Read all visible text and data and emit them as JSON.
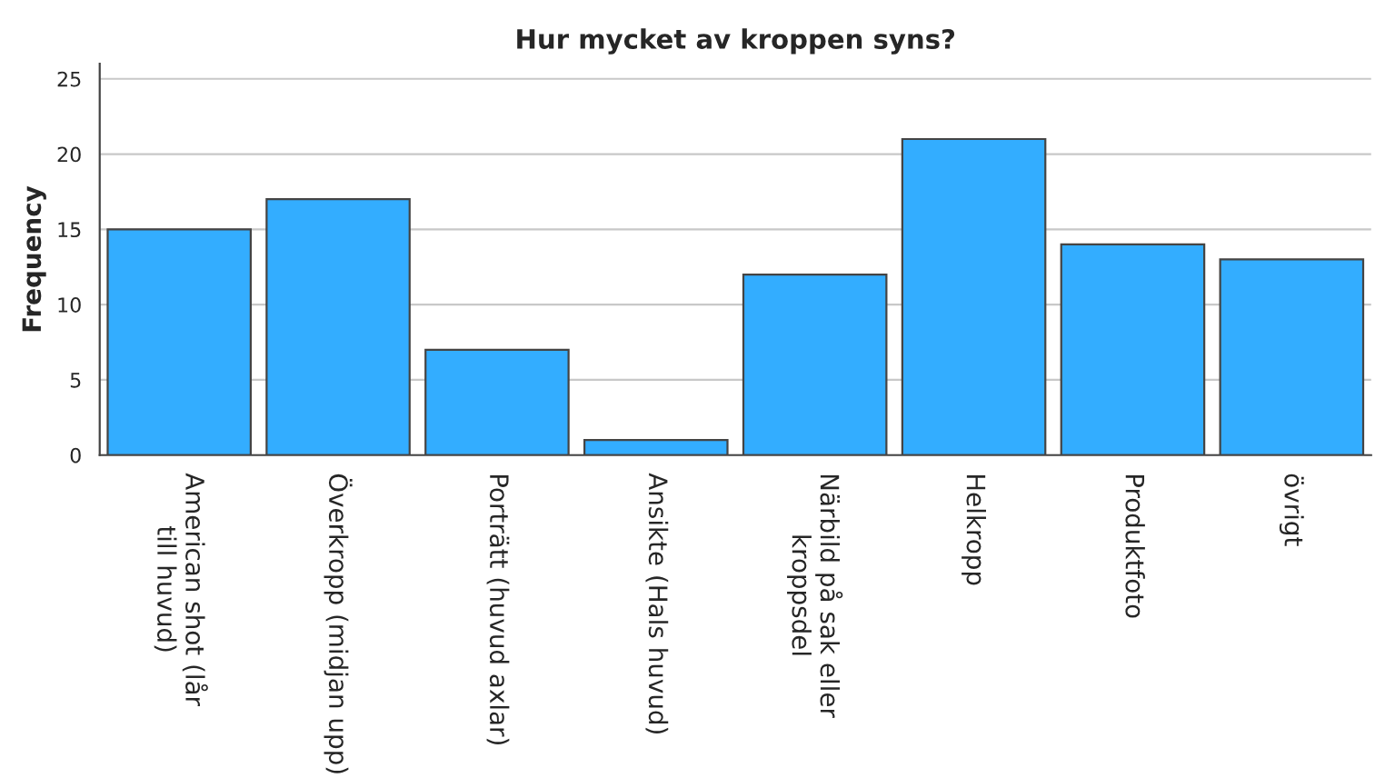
{
  "chart_data": {
    "type": "bar",
    "title": "Hur mycket av kroppen syns?",
    "ylabel": "Frequency",
    "categories": [
      "American shot (lår till huvud)",
      "Överkropp (midjan upp)",
      "Porträtt (huvud axlar)",
      "Ansikte (Hals huvud)",
      "Närbild på sak eller kroppsdel",
      "Helkropp",
      "Produktfoto",
      "övrigt"
    ],
    "values": [
      15,
      17,
      7,
      1,
      12,
      21,
      14,
      13
    ],
    "color": "#33adff",
    "ylim": [
      0,
      26
    ],
    "yticks": [
      0,
      5,
      10,
      15,
      20,
      25
    ],
    "grid": "y",
    "legend": false
  }
}
